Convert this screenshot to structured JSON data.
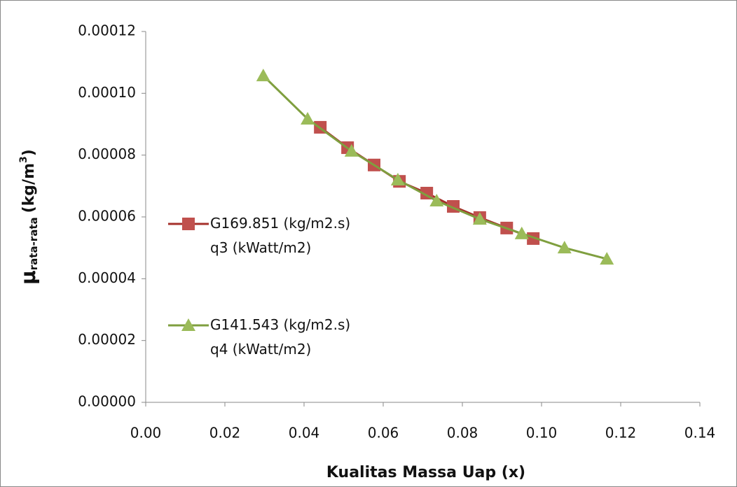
{
  "chart_data": {
    "type": "line",
    "x_label": "Kualitas Massa Uap (x)",
    "y_label": {
      "symbol": "μ",
      "sub": "rata-rata",
      "unit": "(kg/m",
      "sup": "3",
      "close": ")"
    },
    "xlim": [
      0,
      0.14
    ],
    "xticks": [
      {
        "value": 0,
        "label": "0.00"
      },
      {
        "value": 0.02,
        "label": "0.02"
      },
      {
        "value": 0.04,
        "label": "0.04"
      },
      {
        "value": 0.06,
        "label": "0.06"
      },
      {
        "value": 0.08,
        "label": "0.08"
      },
      {
        "value": 0.1,
        "label": "0.10"
      },
      {
        "value": 0.12,
        "label": "0.12"
      },
      {
        "value": 0.14,
        "label": "0.14"
      }
    ],
    "ylim": [
      0,
      0.00012
    ],
    "yticks": [
      {
        "value": 0,
        "label": "0.00000"
      },
      {
        "value": 2e-05,
        "label": "0.00002"
      },
      {
        "value": 4e-05,
        "label": "0.00004"
      },
      {
        "value": 6e-05,
        "label": "0.00006"
      },
      {
        "value": 8e-05,
        "label": "0.00008"
      },
      {
        "value": 0.0001,
        "label": "0.00010"
      },
      {
        "value": 0.00012,
        "label": "0.00012"
      }
    ],
    "legend": "left",
    "series": [
      {
        "name": "G169.851 (kg/m2.s) q3 (kWatt/m2)",
        "color": "#c0504d",
        "marker": "square",
        "x": [
          0.0441,
          0.051,
          0.0577,
          0.0641,
          0.071,
          0.0777,
          0.0844,
          0.0912,
          0.0979
        ],
        "values": [
          8.9e-05,
          8.24e-05,
          7.68e-05,
          7.15e-05,
          6.77e-05,
          6.34e-05,
          5.98e-05,
          5.64e-05,
          5.3e-05
        ]
      },
      {
        "name": "G141.543 (kg/m2.s) q4 (kWatt/m2)",
        "color": "#9bbb59",
        "marker": "triangle",
        "x": [
          0.0297,
          0.0409,
          0.052,
          0.0637,
          0.0735,
          0.0844,
          0.095,
          0.1058,
          0.1165
        ],
        "values": [
          0.0001057,
          9.17e-05,
          8.13e-05,
          7.2e-05,
          6.52e-05,
          5.93e-05,
          5.46e-05,
          5e-05,
          4.64e-05
        ]
      }
    ]
  }
}
